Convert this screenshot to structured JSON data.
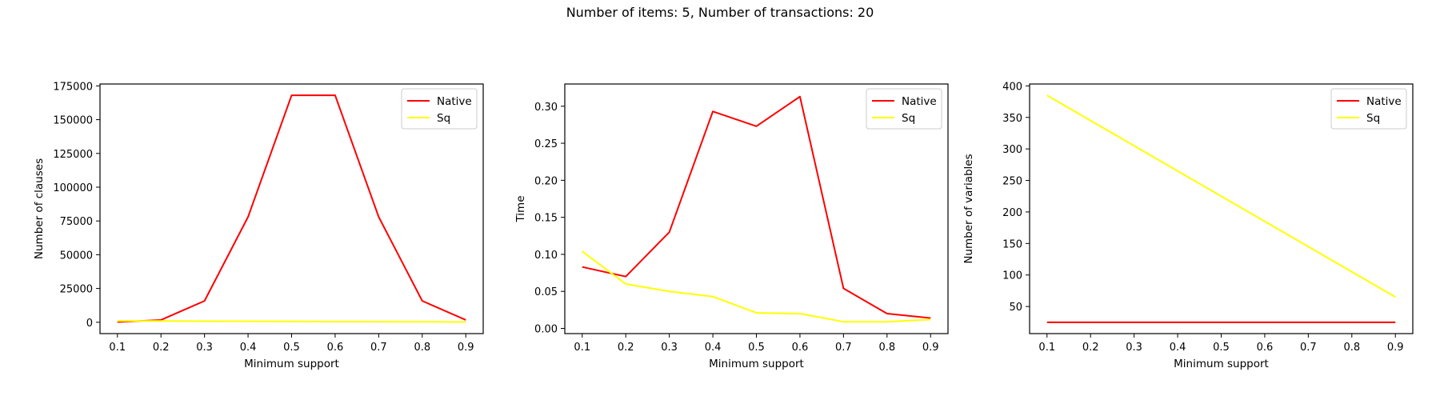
{
  "figure": {
    "suptitle": "Number of items: 5, Number of transactions: 20"
  },
  "chart_data": [
    {
      "type": "line",
      "title": "",
      "xlabel": "Minimum support",
      "ylabel": "Number of clauses",
      "x": [
        0.1,
        0.2,
        0.3,
        0.4,
        0.5,
        0.6,
        0.7,
        0.8,
        0.9
      ],
      "xticks": [
        "0.1",
        "0.2",
        "0.3",
        "0.4",
        "0.5",
        "0.6",
        "0.7",
        "0.8",
        "0.9"
      ],
      "xlim": [
        0.06,
        0.94
      ],
      "ylim": [
        -8400,
        176400
      ],
      "yticks": [
        0,
        25000,
        50000,
        75000,
        100000,
        125000,
        150000,
        175000
      ],
      "grid": false,
      "legend": "top-right",
      "series": [
        {
          "name": "Native",
          "color": "#ff0000",
          "values": [
            200,
            1700,
            15800,
            78000,
            168000,
            168000,
            78000,
            15800,
            1700
          ]
        },
        {
          "name": "Sq",
          "color": "#ffff00",
          "values": [
            1000,
            900,
            800,
            700,
            600,
            500,
            400,
            300,
            200
          ]
        }
      ]
    },
    {
      "type": "line",
      "title": "",
      "xlabel": "Minimum support",
      "ylabel": "Time",
      "x": [
        0.1,
        0.2,
        0.3,
        0.4,
        0.5,
        0.6,
        0.7,
        0.8,
        0.9
      ],
      "xticks": [
        "0.1",
        "0.2",
        "0.3",
        "0.4",
        "0.5",
        "0.6",
        "0.7",
        "0.8",
        "0.9"
      ],
      "xlim": [
        0.06,
        0.94
      ],
      "ylim": [
        -0.007,
        0.33
      ],
      "yticks": [
        0.0,
        0.05,
        0.1,
        0.15,
        0.2,
        0.25,
        0.3
      ],
      "ytick_labels": [
        "0.00",
        "0.05",
        "0.10",
        "0.15",
        "0.20",
        "0.25",
        "0.30"
      ],
      "grid": false,
      "legend": "top-right",
      "series": [
        {
          "name": "Native",
          "color": "#ff0000",
          "values": [
            0.083,
            0.07,
            0.13,
            0.293,
            0.273,
            0.313,
            0.054,
            0.02,
            0.014
          ]
        },
        {
          "name": "Sq",
          "color": "#ffff00",
          "values": [
            0.104,
            0.06,
            0.05,
            0.043,
            0.021,
            0.02,
            0.009,
            0.009,
            0.012
          ]
        }
      ]
    },
    {
      "type": "line",
      "title": "",
      "xlabel": "Minimum support",
      "ylabel": "Number of variables",
      "x": [
        0.1,
        0.2,
        0.3,
        0.4,
        0.5,
        0.6,
        0.7,
        0.8,
        0.9
      ],
      "xticks": [
        "0.1",
        "0.2",
        "0.3",
        "0.4",
        "0.5",
        "0.6",
        "0.7",
        "0.8",
        "0.9"
      ],
      "xlim": [
        0.06,
        0.94
      ],
      "ylim": [
        7,
        403
      ],
      "yticks": [
        50,
        100,
        150,
        200,
        250,
        300,
        350,
        400
      ],
      "grid": false,
      "legend": "top-right",
      "series": [
        {
          "name": "Native",
          "color": "#ff0000",
          "values": [
            25,
            25,
            25,
            25,
            25,
            25,
            25,
            25,
            25
          ]
        },
        {
          "name": "Sq",
          "color": "#ffff00",
          "values": [
            385,
            345,
            305,
            265,
            225,
            185,
            145,
            105,
            65
          ]
        }
      ]
    }
  ]
}
